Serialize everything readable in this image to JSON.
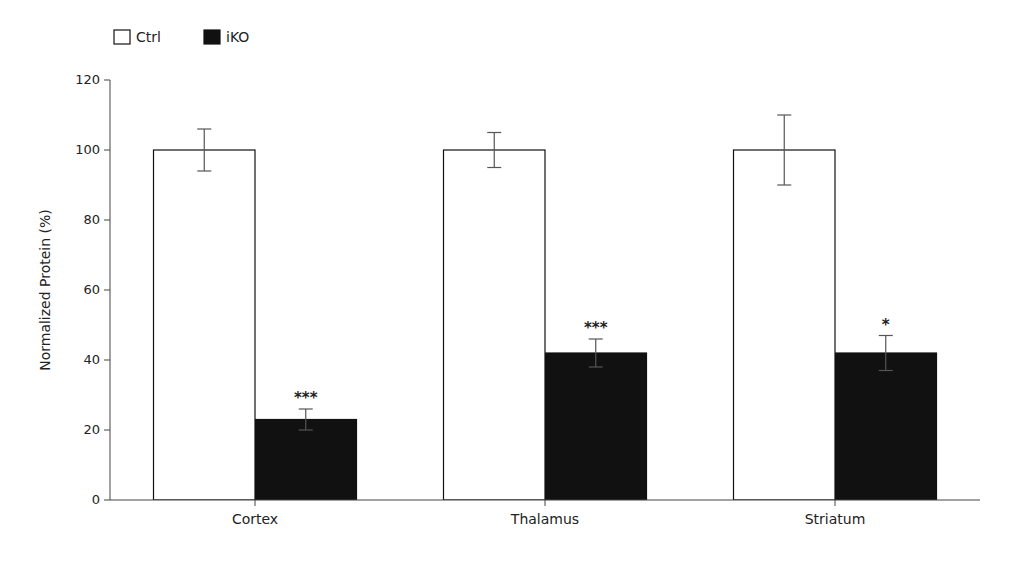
{
  "chart_data": {
    "type": "bar",
    "categories": [
      "Cortex",
      "Thalamus",
      "Striatum"
    ],
    "series": [
      {
        "name": "Ctrl",
        "color": "#ffffff",
        "values": [
          100,
          100,
          100
        ],
        "errors": [
          6,
          5,
          10
        ]
      },
      {
        "name": "iKO",
        "color": "#111111",
        "values": [
          23,
          42,
          42
        ],
        "errors": [
          3,
          4,
          5
        ],
        "significance": [
          "***",
          "***",
          "*"
        ]
      }
    ],
    "edge_color": "#111111",
    "ylabel": "Normalized Protein (%)",
    "ylim": [
      0,
      120
    ],
    "yticks": [
      0,
      20,
      40,
      60,
      80,
      100,
      120
    ],
    "legend": "upper left",
    "grid": false
  }
}
